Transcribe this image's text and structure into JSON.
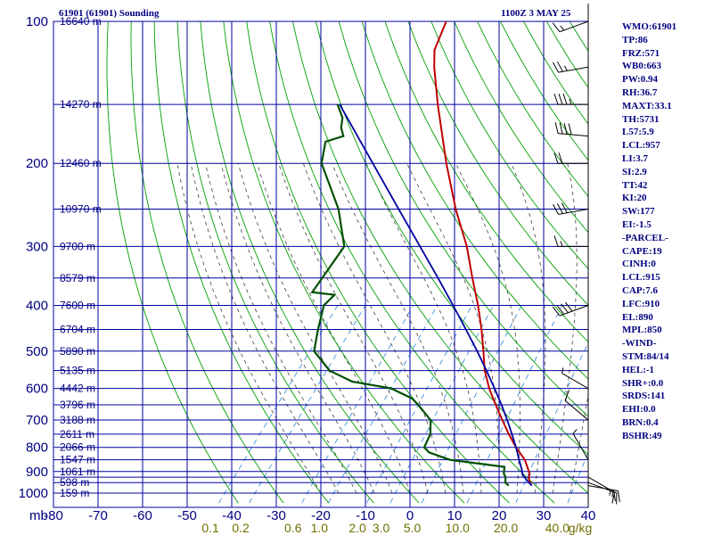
{
  "header": {
    "station": "61901 (61901) Sounding",
    "time": "1100Z  3 MAY 25"
  },
  "indices": [
    "WMO:61901",
    "TP:86",
    "FRZ:571",
    "WB0:663",
    "PW:0.94",
    "RH:36.7",
    "MAXT:33.1",
    "TH:5731",
    "L57:5.9",
    "LCL:957",
    "LI:3.7",
    "SI:2.9",
    "TT:42",
    "KI:20",
    "SW:177",
    "EI:-1.5",
    "-PARCEL-",
    "CAPE:19",
    "CINH:0",
    "LCL:915",
    "CAP:7.6",
    "LFC:910",
    "EL:890",
    "MPL:850",
    "-WIND-",
    "STM:84/14",
    "HEL:-1",
    "SHR+:0.0",
    "SRDS:141",
    "EHI:0.0",
    "BRN:0.4",
    "BSHR:49"
  ],
  "colors": {
    "grid": "#0000a0",
    "isobar_label": "#000080",
    "temperature": "#c00000",
    "dewpoint": "#005000",
    "parcel": "#0000a0",
    "dry_adiabat": "#00a000",
    "moist_adiabat": "#404040",
    "mixing_ratio": "#4090e0",
    "mixing_ratio_label": "#707000",
    "wind_barb": "#000000"
  },
  "chart_data": {
    "type": "line",
    "diagram": "skew-T log-P",
    "pressure_axis": {
      "unit": "mb",
      "range": [
        1000,
        100
      ],
      "log_scale": true,
      "labeled_levels": [
        100,
        200,
        300,
        400,
        500,
        600,
        700,
        800,
        900,
        1000
      ],
      "grid_levels": [
        100,
        150,
        200,
        250,
        300,
        350,
        400,
        450,
        500,
        550,
        600,
        650,
        700,
        750,
        800,
        850,
        900,
        925,
        950,
        1000
      ]
    },
    "temperature_axis": {
      "unit": "C",
      "range": [
        -80,
        40
      ],
      "ticks": [
        -80,
        -70,
        -60,
        -50,
        -40,
        -30,
        -20,
        -10,
        0,
        10,
        20,
        30,
        40
      ],
      "tick_labels": [
        "-80",
        "-70",
        "-60",
        "-50",
        "-40",
        "-30",
        "-20",
        "-10",
        "0",
        "10",
        "20",
        "30",
        "40"
      ]
    },
    "height_labels": [
      {
        "p": 100,
        "label": "16640 m"
      },
      {
        "p": 150,
        "label": "14270 m"
      },
      {
        "p": 200,
        "label": "12460 m"
      },
      {
        "p": 250,
        "label": "10970 m"
      },
      {
        "p": 300,
        "label": "9700 m"
      },
      {
        "p": 350,
        "label": "8579 m"
      },
      {
        "p": 400,
        "label": "7600 m"
      },
      {
        "p": 450,
        "label": "6704 m"
      },
      {
        "p": 500,
        "label": "5890 m"
      },
      {
        "p": 550,
        "label": "5135 m"
      },
      {
        "p": 600,
        "label": "4442 m"
      },
      {
        "p": 650,
        "label": "3796 m"
      },
      {
        "p": 700,
        "label": "3188 m"
      },
      {
        "p": 750,
        "label": "2611 m"
      },
      {
        "p": 800,
        "label": "2066 m"
      },
      {
        "p": 850,
        "label": "1547 m"
      },
      {
        "p": 900,
        "label": "1061 m"
      },
      {
        "p": 950,
        "label": "598 m"
      },
      {
        "p": 1000,
        "label": "159 m"
      }
    ],
    "mixing_ratio_lines": {
      "unit": "g/kg",
      "values": [
        0.1,
        0.2,
        0.6,
        1.0,
        2.0,
        3.0,
        5.0,
        10.0,
        20.0,
        40.0
      ],
      "labels": [
        "0.1",
        "0.2",
        "0.6",
        "1.0",
        "2.0",
        "3.0",
        "5.0",
        "10.0",
        "20.0",
        "40.0"
      ],
      "unit_label": "g/kg"
    },
    "series": [
      {
        "id": "temperature",
        "points": [
          {
            "p": 964,
            "t": 26.0
          },
          {
            "p": 950,
            "t": 25.0
          },
          {
            "p": 925,
            "t": 23.8
          },
          {
            "p": 910,
            "t": 23.4
          },
          {
            "p": 850,
            "t": 19.8
          },
          {
            "p": 800,
            "t": 15.6
          },
          {
            "p": 750,
            "t": 11.6
          },
          {
            "p": 700,
            "t": 7.6
          },
          {
            "p": 650,
            "t": 3.4
          },
          {
            "p": 600,
            "t": -1.0
          },
          {
            "p": 550,
            "t": -5.2
          },
          {
            "p": 500,
            "t": -9.0
          },
          {
            "p": 450,
            "t": -13.3
          },
          {
            "p": 400,
            "t": -18.4
          },
          {
            "p": 350,
            "t": -24.6
          },
          {
            "p": 300,
            "t": -31.5
          },
          {
            "p": 250,
            "t": -40.7
          },
          {
            "p": 200,
            "t": -51.0
          },
          {
            "p": 150,
            "t": -63.5
          },
          {
            "p": 125,
            "t": -71.0
          },
          {
            "p": 115,
            "t": -74.0
          },
          {
            "p": 100,
            "t": -76.5
          }
        ]
      },
      {
        "id": "dewpoint",
        "points": [
          {
            "p": 964,
            "t": 20.8
          },
          {
            "p": 950,
            "t": 19.5
          },
          {
            "p": 925,
            "t": 18.6
          },
          {
            "p": 910,
            "t": 17.6
          },
          {
            "p": 880,
            "t": 16.5
          },
          {
            "p": 850,
            "t": 3.0
          },
          {
            "p": 820,
            "t": -3.0
          },
          {
            "p": 800,
            "t": -5.0
          },
          {
            "p": 750,
            "t": -6.0
          },
          {
            "p": 700,
            "t": -8.5
          },
          {
            "p": 650,
            "t": -14.0
          },
          {
            "p": 630,
            "t": -16.5
          },
          {
            "p": 600,
            "t": -23.0
          },
          {
            "p": 580,
            "t": -33.0
          },
          {
            "p": 550,
            "t": -40.0
          },
          {
            "p": 500,
            "t": -47.0
          },
          {
            "p": 450,
            "t": -50.0
          },
          {
            "p": 400,
            "t": -53.0
          },
          {
            "p": 380,
            "t": -52.5
          },
          {
            "p": 375,
            "t": -58.0
          },
          {
            "p": 300,
            "t": -59.0
          },
          {
            "p": 250,
            "t": -67.0
          },
          {
            "p": 200,
            "t": -79.0
          },
          {
            "p": 180,
            "t": -82.0
          },
          {
            "p": 175,
            "t": -79.0
          },
          {
            "p": 168,
            "t": -81.0
          },
          {
            "p": 160,
            "t": -82.5
          },
          {
            "p": 150,
            "t": -86.0
          }
        ]
      },
      {
        "id": "parcel",
        "points": [
          {
            "p": 964,
            "t": 26.0
          },
          {
            "p": 950,
            "t": 24.8
          },
          {
            "p": 915,
            "t": 22.0
          },
          {
            "p": 890,
            "t": 20.8
          },
          {
            "p": 850,
            "t": 18.5
          },
          {
            "p": 800,
            "t": 15.6
          },
          {
            "p": 750,
            "t": 12.3
          },
          {
            "p": 700,
            "t": 8.7
          },
          {
            "p": 650,
            "t": 4.7
          },
          {
            "p": 600,
            "t": 0.2
          },
          {
            "p": 550,
            "t": -4.8
          },
          {
            "p": 500,
            "t": -10.4
          },
          {
            "p": 450,
            "t": -16.8
          },
          {
            "p": 400,
            "t": -24.0
          },
          {
            "p": 350,
            "t": -32.3
          },
          {
            "p": 300,
            "t": -42.0
          },
          {
            "p": 250,
            "t": -53.5
          },
          {
            "p": 200,
            "t": -67.5
          },
          {
            "p": 150,
            "t": -85.5
          }
        ]
      }
    ],
    "wind_profile": [
      {
        "p": 100,
        "dir": 250,
        "kt": 15
      },
      {
        "p": 125,
        "dir": 260,
        "kt": 25
      },
      {
        "p": 150,
        "dir": 270,
        "kt": 35
      },
      {
        "p": 175,
        "dir": 275,
        "kt": 40
      },
      {
        "p": 200,
        "dir": 270,
        "kt": 20
      },
      {
        "p": 250,
        "dir": 260,
        "kt": 30
      },
      {
        "p": 300,
        "dir": 270,
        "kt": 15
      },
      {
        "p": 400,
        "dir": 250,
        "kt": 40
      },
      {
        "p": 600,
        "dir": 300,
        "kt": 5
      },
      {
        "p": 700,
        "dir": 310,
        "kt": 10
      },
      {
        "p": 850,
        "dir": 330,
        "kt": 5
      },
      {
        "p": 925,
        "dir": 120,
        "kt": 15
      },
      {
        "p": 950,
        "dir": 110,
        "kt": 15
      },
      {
        "p": 964,
        "dir": 100,
        "kt": 20
      }
    ]
  }
}
